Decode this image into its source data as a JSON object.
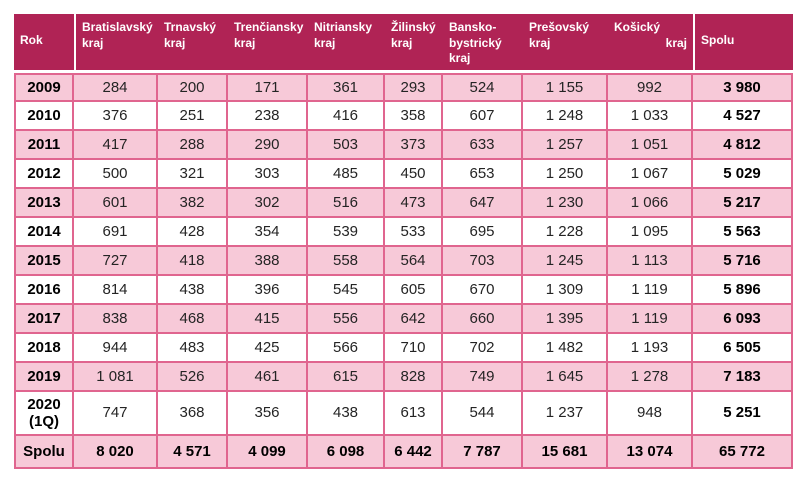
{
  "colors": {
    "header_bg": "#b02355",
    "row_pink": "#f7c9d8",
    "border_pink": "#e0658f",
    "header_text": "#ffffff",
    "body_text": "#242424"
  },
  "table": {
    "header": [
      {
        "lines": [
          "Rok"
        ],
        "valign": "middle"
      },
      {
        "lines": [
          "Bratislavský",
          "kraj"
        ],
        "divider_left": true
      },
      {
        "lines": [
          "Trnavský",
          "kraj"
        ]
      },
      {
        "lines": [
          "Trenčiansky",
          "kraj"
        ]
      },
      {
        "lines": [
          "Nitriansky",
          "kraj"
        ]
      },
      {
        "lines": [
          "Žilinský",
          "kraj"
        ]
      },
      {
        "lines": [
          "Bansko-",
          "bystrický",
          "kraj"
        ]
      },
      {
        "lines": [
          "Prešovský",
          "kraj"
        ]
      },
      {
        "lines": [
          "Košický",
          "kraj"
        ],
        "align_last": "right"
      },
      {
        "lines": [
          "Spolu"
        ],
        "valign": "middle",
        "divider_left": true
      }
    ],
    "rows": [
      {
        "rok": "2009",
        "values": [
          "284",
          "200",
          "171",
          "361",
          "293",
          "524",
          "1 155",
          "992"
        ],
        "spolu": "3 980"
      },
      {
        "rok": "2010",
        "values": [
          "376",
          "251",
          "238",
          "416",
          "358",
          "607",
          "1 248",
          "1 033"
        ],
        "spolu": "4 527"
      },
      {
        "rok": "2011",
        "values": [
          "417",
          "288",
          "290",
          "503",
          "373",
          "633",
          "1 257",
          "1 051"
        ],
        "spolu": "4 812"
      },
      {
        "rok": "2012",
        "values": [
          "500",
          "321",
          "303",
          "485",
          "450",
          "653",
          "1 250",
          "1 067"
        ],
        "spolu": "5 029"
      },
      {
        "rok": "2013",
        "values": [
          "601",
          "382",
          "302",
          "516",
          "473",
          "647",
          "1 230",
          "1 066"
        ],
        "spolu": "5 217"
      },
      {
        "rok": "2014",
        "values": [
          "691",
          "428",
          "354",
          "539",
          "533",
          "695",
          "1 228",
          "1 095"
        ],
        "spolu": "5 563"
      },
      {
        "rok": "2015",
        "values": [
          "727",
          "418",
          "388",
          "558",
          "564",
          "703",
          "1 245",
          "1 113"
        ],
        "spolu": "5 716"
      },
      {
        "rok": "2016",
        "values": [
          "814",
          "438",
          "396",
          "545",
          "605",
          "670",
          "1 309",
          "1 119"
        ],
        "spolu": "5 896"
      },
      {
        "rok": "2017",
        "values": [
          "838",
          "468",
          "415",
          "556",
          "642",
          "660",
          "1 395",
          "1 119"
        ],
        "spolu": "6 093"
      },
      {
        "rok": "2018",
        "values": [
          "944",
          "483",
          "425",
          "566",
          "710",
          "702",
          "1 482",
          "1 193"
        ],
        "spolu": "6 505"
      },
      {
        "rok": "2019",
        "values": [
          "1 081",
          "526",
          "461",
          "615",
          "828",
          "749",
          "1 645",
          "1 278"
        ],
        "spolu": "7 183"
      },
      {
        "rok": "2020\n(1Q)",
        "values": [
          "747",
          "368",
          "356",
          "438",
          "613",
          "544",
          "1 237",
          "948"
        ],
        "spolu": "5 251",
        "tall": true
      },
      {
        "rok": "Spolu",
        "values": [
          "8 020",
          "4 571",
          "4 099",
          "6 098",
          "6 442",
          "7 787",
          "15 681",
          "13 074"
        ],
        "spolu": "65 772",
        "total": true
      }
    ]
  },
  "chart_data": {
    "type": "table",
    "title": "",
    "columns": [
      "Rok",
      "Bratislavský kraj",
      "Trnavský kraj",
      "Trenčiansky kraj",
      "Nitriansky kraj",
      "Žilinský kraj",
      "Banskobystrický kraj",
      "Prešovský kraj",
      "Košický kraj",
      "Spolu"
    ],
    "categories": [
      "2009",
      "2010",
      "2011",
      "2012",
      "2013",
      "2014",
      "2015",
      "2016",
      "2017",
      "2018",
      "2019",
      "2020 (1Q)"
    ],
    "series": [
      {
        "name": "Bratislavský kraj",
        "values": [
          284,
          376,
          417,
          500,
          601,
          691,
          727,
          814,
          838,
          944,
          1081,
          747
        ],
        "total": 8020
      },
      {
        "name": "Trnavský kraj",
        "values": [
          200,
          251,
          288,
          321,
          382,
          428,
          418,
          438,
          468,
          483,
          526,
          368
        ],
        "total": 4571
      },
      {
        "name": "Trenčiansky kraj",
        "values": [
          171,
          238,
          290,
          303,
          302,
          354,
          388,
          396,
          415,
          425,
          461,
          356
        ],
        "total": 4099
      },
      {
        "name": "Nitriansky kraj",
        "values": [
          361,
          416,
          503,
          485,
          516,
          539,
          558,
          545,
          556,
          566,
          615,
          438
        ],
        "total": 6098
      },
      {
        "name": "Žilinský kraj",
        "values": [
          293,
          358,
          373,
          450,
          473,
          533,
          564,
          605,
          642,
          710,
          828,
          613
        ],
        "total": 6442
      },
      {
        "name": "Banskobystrický kraj",
        "values": [
          524,
          607,
          633,
          653,
          647,
          695,
          703,
          670,
          660,
          702,
          749,
          544
        ],
        "total": 7787
      },
      {
        "name": "Prešovský kraj",
        "values": [
          1155,
          1248,
          1257,
          1250,
          1230,
          1228,
          1245,
          1309,
          1395,
          1482,
          1645,
          1237
        ],
        "total": 15681
      },
      {
        "name": "Košický kraj",
        "values": [
          992,
          1033,
          1051,
          1067,
          1066,
          1095,
          1113,
          1119,
          1119,
          1193,
          1278,
          948
        ],
        "total": 13074
      }
    ],
    "row_totals": [
      3980,
      4527,
      4812,
      5029,
      5217,
      5563,
      5716,
      5896,
      6093,
      6505,
      7183,
      5251
    ],
    "grand_total": 65772
  }
}
